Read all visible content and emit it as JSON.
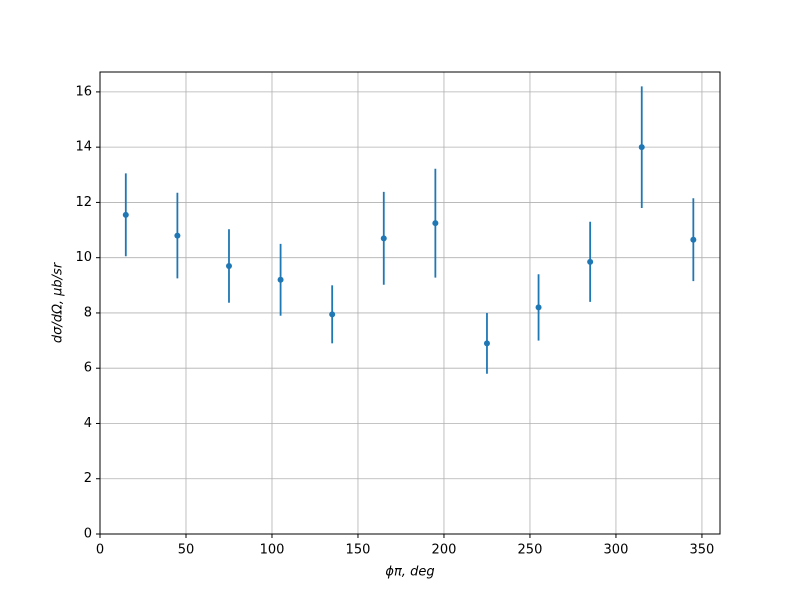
{
  "chart_data": {
    "type": "errorbar",
    "xlabel": "ϕπ, deg",
    "ylabel": "dσ/dΩ, μb/sr",
    "x": [
      15,
      45,
      75,
      105,
      135,
      165,
      195,
      225,
      255,
      285,
      315,
      345
    ],
    "values": [
      11.55,
      10.8,
      9.7,
      9.2,
      7.95,
      10.7,
      11.25,
      6.9,
      8.2,
      9.85,
      14.0,
      10.65
    ],
    "errors": [
      1.5,
      1.55,
      1.33,
      1.3,
      1.05,
      1.68,
      1.97,
      1.1,
      1.2,
      1.45,
      2.2,
      1.5
    ],
    "color": "#1f77b4",
    "xlim": [
      0,
      360.5
    ],
    "xticks": [
      0,
      50,
      100,
      150,
      200,
      250,
      300,
      350
    ],
    "ylim": [
      0,
      16.72
    ],
    "yticks": [
      0,
      2,
      4,
      6,
      8,
      10,
      12,
      14,
      16
    ],
    "grid": true
  }
}
